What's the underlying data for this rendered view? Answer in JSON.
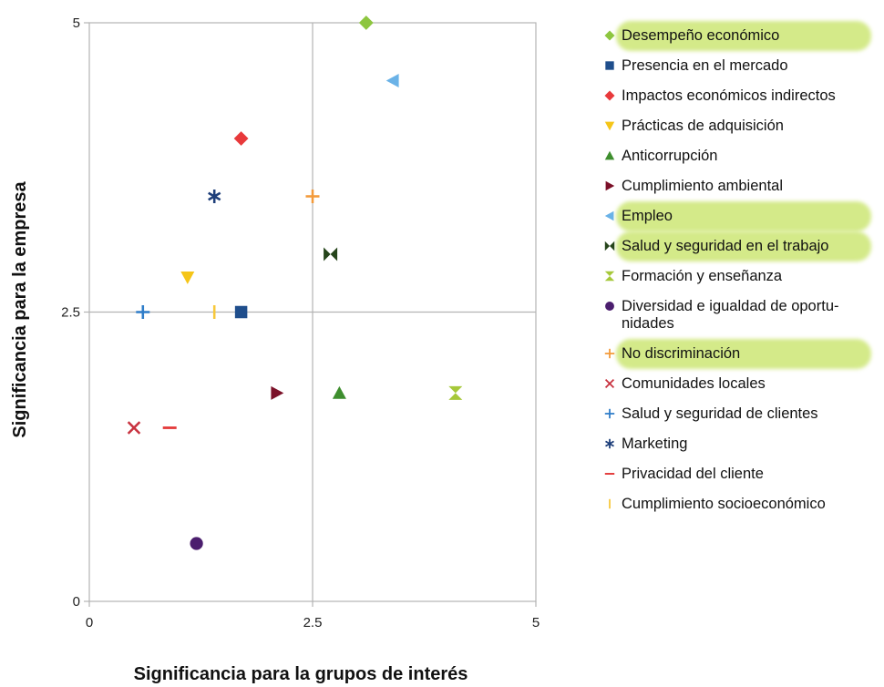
{
  "chart_data": {
    "type": "scatter",
    "xlabel": "Significancia para la grupos de interés",
    "ylabel": "Significancia para la empresa",
    "xlim": [
      0,
      5
    ],
    "ylim": [
      0,
      5
    ],
    "x_ticks": [
      "0",
      "2.5",
      "5"
    ],
    "y_ticks": [
      "0",
      "2.5",
      "5"
    ],
    "grid": "vertical and horizontal lines at 2.5",
    "legend_position": "right",
    "series": [
      {
        "name": "Desempeño económico",
        "marker": "diamond",
        "color": "#8DC63F",
        "highlighted": true,
        "x": 3.1,
        "y": 5.0
      },
      {
        "name": "Presencia en el mercado",
        "marker": "square",
        "color": "#1F4E8C",
        "highlighted": false,
        "x": 1.7,
        "y": 2.5
      },
      {
        "name": "Impactos económicos indirectos",
        "marker": "diamond",
        "color": "#E8393B",
        "highlighted": false,
        "x": 1.7,
        "y": 4.0
      },
      {
        "name": "Prácticas de adquisición",
        "marker": "triangle-down",
        "color": "#F5C518",
        "highlighted": false,
        "x": 1.1,
        "y": 2.8
      },
      {
        "name": "Anticorrupción",
        "marker": "triangle-up",
        "color": "#3E8E2E",
        "highlighted": false,
        "x": 2.8,
        "y": 1.8
      },
      {
        "name": "Cumplimiento ambiental",
        "marker": "triangle-right",
        "color": "#7B1028",
        "highlighted": false,
        "x": 2.1,
        "y": 1.8
      },
      {
        "name": "Empleo",
        "marker": "triangle-left",
        "color": "#6AB2E7",
        "highlighted": true,
        "x": 3.4,
        "y": 4.5
      },
      {
        "name": "Salud y seguridad en el trabajo",
        "marker": "bowtie",
        "color": "#25441A",
        "highlighted": true,
        "x": 2.7,
        "y": 3.0
      },
      {
        "name": "Formación y enseñanza",
        "marker": "hourglass",
        "color": "#A6C83A",
        "highlighted": false,
        "x": 4.1,
        "y": 1.8
      },
      {
        "name": "Diversidad e igualdad de oportu-\nnidades",
        "marker": "circle",
        "color": "#4B1E6E",
        "highlighted": false,
        "x": 1.2,
        "y": 0.5
      },
      {
        "name": "No discriminación",
        "marker": "plus",
        "color": "#F39A3A",
        "highlighted": true,
        "x": 2.5,
        "y": 3.5
      },
      {
        "name": "Comunidades locales",
        "marker": "x",
        "color": "#C8323F",
        "highlighted": false,
        "x": 0.5,
        "y": 1.5
      },
      {
        "name": "Salud y seguridad de clientes",
        "marker": "plus",
        "color": "#2F7DC9",
        "highlighted": false,
        "x": 0.6,
        "y": 2.5
      },
      {
        "name": "Marketing",
        "marker": "asterisk",
        "color": "#1E3F7A",
        "highlighted": false,
        "x": 1.4,
        "y": 3.5
      },
      {
        "name": "Privacidad del cliente",
        "marker": "dash",
        "color": "#E43A3A",
        "highlighted": false,
        "x": 0.9,
        "y": 1.5
      },
      {
        "name": "Cumplimiento socioeconómico",
        "marker": "vbar",
        "color": "#F7C83A",
        "highlighted": false,
        "x": 1.4,
        "y": 2.5
      }
    ]
  }
}
